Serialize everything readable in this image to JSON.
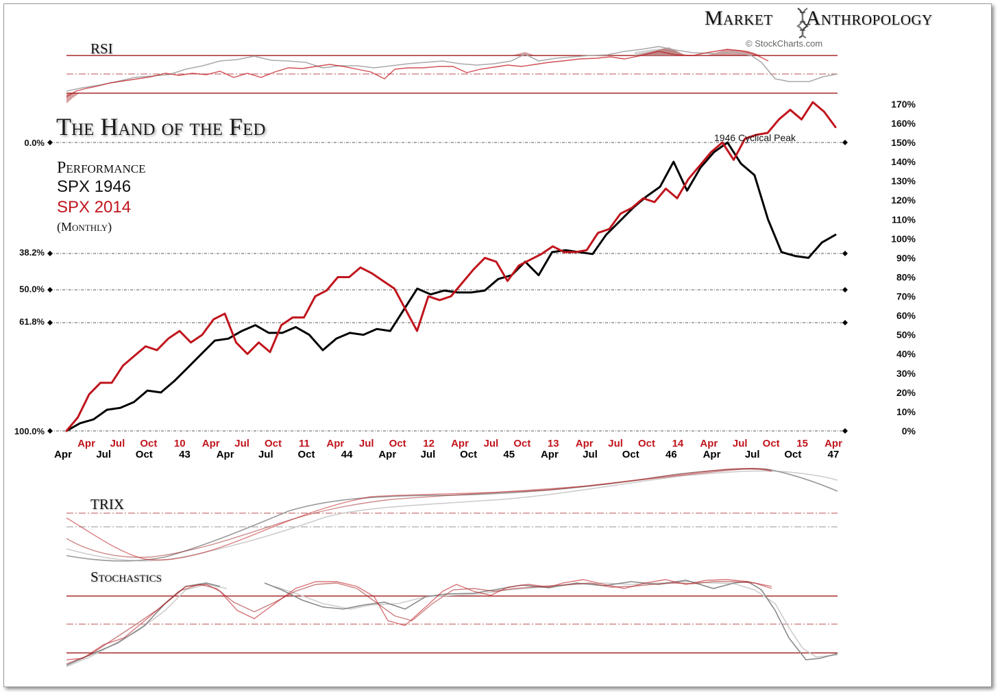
{
  "brand": {
    "left": "Market",
    "right": "Anthropology",
    "copyright": "© StockCharts.com",
    "logo": "dna-helix-icon"
  },
  "title": "The Hand of the Fed",
  "legend": {
    "performance": "Performance",
    "series_1946": "SPX 1946",
    "series_2014": "SPX 2014",
    "frequency": "(Monthly)"
  },
  "panels": {
    "rsi": "RSI",
    "trix": "TRIX",
    "stochastics": "Stochastics"
  },
  "colors": {
    "red": "#c0141c",
    "black": "#000000",
    "guide": "#a52a2a"
  },
  "chart_data": {
    "type": "line",
    "title": "The Hand of the Fed",
    "xlabel": "",
    "ylabel": "",
    "ylim": [
      0,
      170
    ],
    "grid": false,
    "right_axis_ticks": [
      "170%",
      "160%",
      "150%",
      "140%",
      "130%",
      "120%",
      "110%",
      "100%",
      "90%",
      "80%",
      "70%",
      "60%",
      "50%",
      "40%",
      "30%",
      "20%",
      "10%",
      "0%"
    ],
    "fib_levels": [
      {
        "label": "0.0%",
        "value": 150
      },
      {
        "label": "38.2%",
        "value": 93
      },
      {
        "label": "50.0%",
        "value": 74
      },
      {
        "label": "61.8%",
        "value": 57
      },
      {
        "label": "100.0%",
        "value": 0
      }
    ],
    "x_labels_2014": [
      "Apr",
      "Jul",
      "Oct",
      "10",
      "Apr",
      "Jul",
      "Oct",
      "11",
      "Apr",
      "Jul",
      "Oct",
      "12",
      "Apr",
      "Jul",
      "Oct",
      "13",
      "Apr",
      "Jul",
      "Oct",
      "14",
      "Apr",
      "Jul",
      "Oct",
      "15",
      "Apr"
    ],
    "x_labels_1946": [
      "Apr",
      "Jul",
      "Oct",
      "43",
      "Apr",
      "Jul",
      "Oct",
      "44",
      "Apr",
      "Jul",
      "Oct",
      "45",
      "Apr",
      "Jul",
      "Oct",
      "46",
      "Apr",
      "Jul",
      "Oct",
      "47"
    ],
    "annotation": "1946 Cyclical Peak",
    "series": [
      {
        "name": "SPX 2014",
        "color": "#c0141c",
        "values": [
          0,
          7,
          19,
          25,
          25,
          34,
          39,
          44,
          42,
          48,
          52,
          46,
          50,
          58,
          61,
          46,
          40,
          46,
          41,
          55,
          59,
          59,
          70,
          73,
          80,
          80,
          85,
          82,
          78,
          74,
          63,
          52,
          70,
          68,
          70,
          77,
          84,
          90,
          88,
          78,
          86,
          89,
          92,
          96,
          93,
          93,
          94,
          103,
          105,
          113,
          116,
          121,
          119,
          126,
          121,
          131,
          138,
          145,
          150,
          141,
          152,
          154,
          155,
          162,
          167,
          162,
          171,
          166,
          158
        ]
      },
      {
        "name": "SPX 1946",
        "color": "#000000",
        "values": [
          0,
          4,
          6,
          11,
          12,
          15,
          21,
          20,
          26,
          33,
          40,
          47,
          48,
          52,
          55,
          51,
          51,
          54,
          50,
          42,
          48,
          51,
          50,
          53,
          52,
          63,
          74,
          71,
          73,
          72,
          72,
          73,
          79,
          81,
          88,
          81,
          93,
          94,
          93,
          92,
          102,
          109,
          116,
          122,
          127,
          140,
          125,
          137,
          145,
          150,
          139,
          133,
          110,
          93,
          91,
          90,
          98,
          102
        ]
      }
    ]
  }
}
